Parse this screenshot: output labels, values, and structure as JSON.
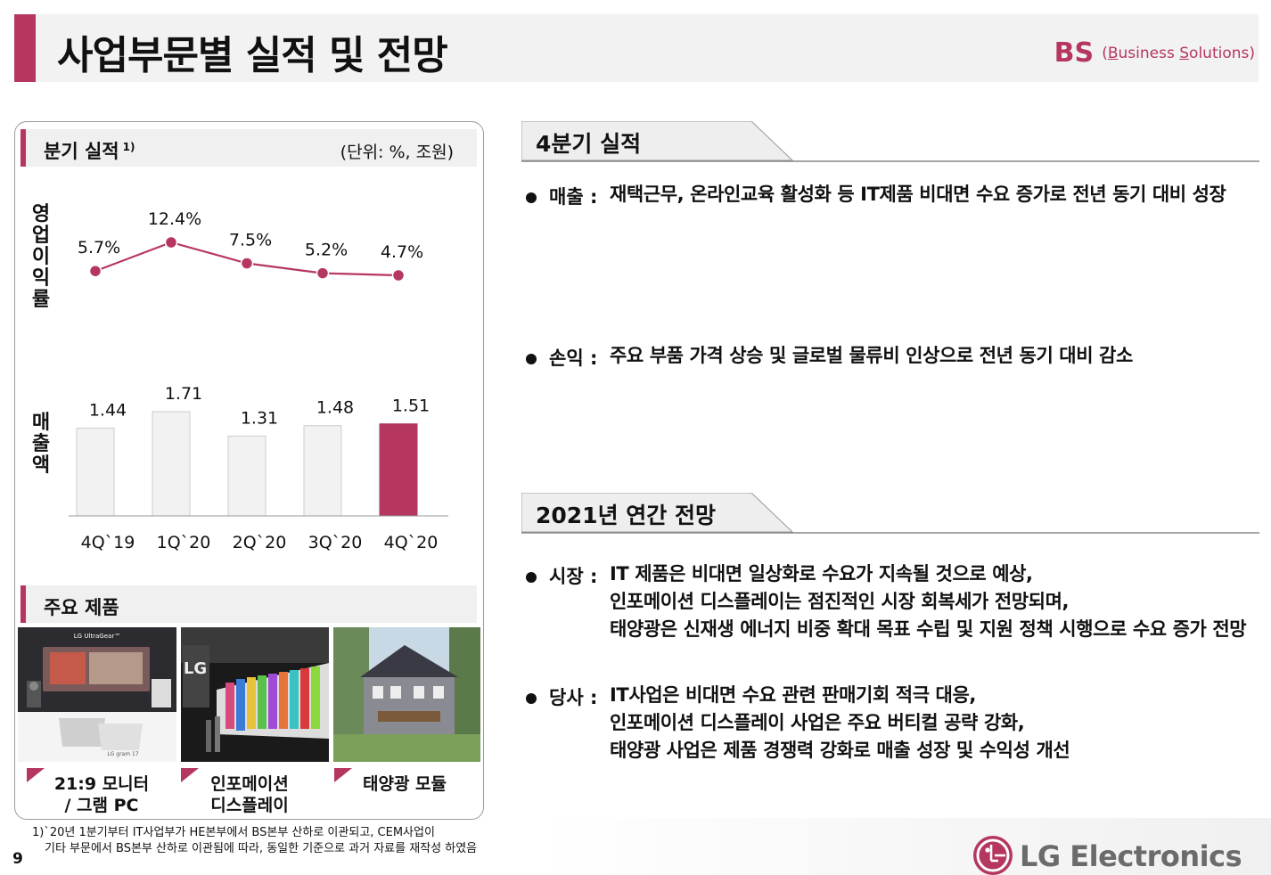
{
  "header": {
    "title": "사업부문별 실적 및 전망",
    "division_abbr": "BS",
    "division_full_prefix": "(",
    "division_full_b": "B",
    "division_full_mid": "usiness ",
    "division_full_s": "S",
    "division_full_end": "olutions)"
  },
  "quarterly": {
    "heading": "분기 실적",
    "heading_note": "1)",
    "unit": "(단위: %, 조원)",
    "op_margin_label": "영업이익률",
    "sales_label": "매출액"
  },
  "chart_data": [
    {
      "type": "line",
      "x": [
        "4Q`19",
        "1Q`20",
        "2Q`20",
        "3Q`20",
        "4Q`20"
      ],
      "values": [
        5.7,
        12.4,
        7.5,
        5.2,
        4.7
      ],
      "value_labels": [
        "5.7%",
        "12.4%",
        "7.5%",
        "5.2%",
        "4.7%"
      ],
      "ylabel": "영업이익률",
      "color": "#b5375f"
    },
    {
      "type": "bar",
      "categories": [
        "4Q`19",
        "1Q`20",
        "2Q`20",
        "3Q`20",
        "4Q`20"
      ],
      "values": [
        1.44,
        1.71,
        1.31,
        1.48,
        1.51
      ],
      "value_labels": [
        "1.44",
        "1.71",
        "1.31",
        "1.48",
        "1.51"
      ],
      "ylabel": "매출액",
      "highlight_index": 4,
      "colors": {
        "normal": "#f2f2f2",
        "highlight": "#b5375f"
      }
    }
  ],
  "products": {
    "heading": "주요 제품",
    "items": [
      {
        "caption_line1": "21:9 모니터",
        "caption_line2": "/ 그램 PC",
        "image": "monitor-and-laptop-photo",
        "screen_text_1": "LG UltraGear™",
        "screen_text_2": "LG gram 17"
      },
      {
        "caption_line1": "인포메이션",
        "caption_line2": "디스플레이",
        "image": "information-display-photo",
        "screen_text_1": "LG"
      },
      {
        "caption_line1": "태양광 모듈",
        "caption_line2": "",
        "image": "solar-house-photo"
      }
    ]
  },
  "q4": {
    "heading": "4분기 실적",
    "sales_label": "매출 :",
    "sales_text": "재택근무, 온라인교육 활성화 등 IT제품 비대면 수요 증가로 전년 동기 대비 성장",
    "profit_label": "손익 :",
    "profit_text": "주요 부품 가격 상승 및 글로벌 물류비 인상으로 전년 동기 대비 감소"
  },
  "outlook": {
    "heading": "2021년 연간 전망",
    "market_label": "시장 :",
    "market_lines": [
      "IT 제품은 비대면 일상화로 수요가 지속될 것으로 예상,",
      "인포메이션 디스플레이는 점진적인 시장 회복세가 전망되며,",
      "태양광은 신재생 에너지 비중 확대 목표 수립 및 지원 정책 시행으로 수요 증가 전망"
    ],
    "company_label": "당사 :",
    "company_lines": [
      "IT사업은 비대면 수요 관련 판매기회 적극 대응,",
      "인포메이션 디스플레이 사업은 주요 버티컬 공략 강화,",
      "태양광 사업은 제품 경쟁력 강화로 매출 성장 및 수익성 개선"
    ]
  },
  "footnote": {
    "line1": "1)`20년 1분기부터 IT사업부가 HE본부에서 BS본부 산하로 이관되고, CEM사업이",
    "line2": "기타 부문에서 BS본부 산하로 이관됨에 따라, 동일한 기준으로 과거 자료를 재작성 하였음"
  },
  "page_number": "9",
  "brand": {
    "name": "LG Electronics",
    "logo_icon": "lg-face-logo-icon",
    "color": "#b5375f"
  }
}
